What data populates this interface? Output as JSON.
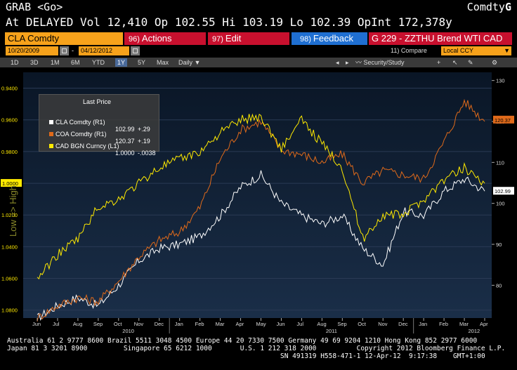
{
  "header": {
    "left": "GRAB <Go>",
    "right_prefix": "Comdty",
    "right_logo": "G",
    "quote_line": "At DELAYED Vol 12,410 Op 102.55 Hi 103.19 Lo 102.39 OpInt 172,378y"
  },
  "toolbar": {
    "ticker": "CLA Comdty",
    "actions_num": "96)",
    "actions_label": "Actions",
    "edit_num": "97)",
    "edit_label": "Edit",
    "feedback_num": "98)",
    "feedback_label": "Feedback",
    "title": "G 229 - ZZTHU Brend WTI CAD"
  },
  "dates": {
    "start": "10/20/2009",
    "separator": "-",
    "end": "04/12/2012",
    "compare": "11) Compare",
    "currency": "Local CCY"
  },
  "periods": [
    "1D",
    "3D",
    "1M",
    "6M",
    "YTD",
    "1Y",
    "5Y",
    "Max"
  ],
  "active_period": "1Y",
  "frequency": "Daily",
  "tools": {
    "security_study": "Security/Study"
  },
  "legend": {
    "title": "Last Price",
    "items": [
      {
        "name": "CLA Comdty",
        "axis": "(R1)",
        "value": "102.99",
        "change": "+.29",
        "color": "#ffffff"
      },
      {
        "name": "COA Comdty",
        "axis": "(R1)",
        "value": "120.37",
        "change": "+.19",
        "color": "#e06a1a"
      },
      {
        "name": "CAD BGN Curncy",
        "axis": "(L1)",
        "value": "1.0000",
        "change": "-.0038",
        "color": "#ffea00"
      }
    ]
  },
  "chart_data": {
    "type": "line",
    "left_axis_label": "Low => High",
    "left_ticks": [
      "0.9400",
      "0.9600",
      "0.9800",
      "1.0000",
      "1.0200",
      "1.0400",
      "1.0600",
      "1.0800"
    ],
    "right_ticks": [
      "130",
      "120",
      "110",
      "100",
      "90",
      "80"
    ],
    "right_badges": [
      "120.37",
      "102.99"
    ],
    "left_badge": "1.0000",
    "x_months": [
      "Jun",
      "Jul",
      "Aug",
      "Sep",
      "Oct",
      "Nov",
      "Dec",
      "Jan",
      "Feb",
      "Mar",
      "Apr",
      "May",
      "Jun",
      "Jul",
      "Aug",
      "Sep",
      "Oct",
      "Nov",
      "Dec",
      "Jan",
      "Feb",
      "Mar",
      "Apr"
    ],
    "x_years": [
      "2010",
      "2011",
      "2012"
    ],
    "series": [
      {
        "name": "CLA Comdty",
        "color": "#ffffff",
        "values": [
          72,
          75,
          77,
          75,
          80,
          86,
          89,
          90,
          92,
          97,
          104,
          107,
          100,
          97,
          95,
          97,
          89,
          85,
          98,
          97,
          103,
          106,
          103
        ]
      },
      {
        "name": "COA Comdty",
        "color": "#e06a1a",
        "values": [
          72,
          75,
          77,
          76,
          81,
          87,
          91,
          93,
          99,
          111,
          118,
          120,
          113,
          112,
          110,
          112,
          105,
          108,
          107,
          106,
          115,
          125,
          120
        ]
      },
      {
        "name": "CAD BGN Curncy",
        "color": "#ffea00",
        "values": [
          1.06,
          1.045,
          1.035,
          1.015,
          1.01,
          1.0,
          0.99,
          0.985,
          0.98,
          0.968,
          0.96,
          0.958,
          0.978,
          0.96,
          0.975,
          0.99,
          1.035,
          1.02,
          1.02,
          1.01,
          0.998,
          0.99,
          1.0
        ]
      }
    ]
  },
  "footer": {
    "line1": "Australia 61 2 9777 8600 Brazil 5511 3048 4500 Europe 44 20 7330 7500 Germany 49 69 9204 1210 Hong Kong 852 2977 6000",
    "line2": "Japan 81 3 3201 8900         Singapore 65 6212 1000       U.S. 1 212 318 2000          Copyright 2012 Bloomberg Finance L.P.",
    "line3": "SN 491319 H558-471-1 12-Apr-12  9:17:38    GMT+1:00"
  }
}
